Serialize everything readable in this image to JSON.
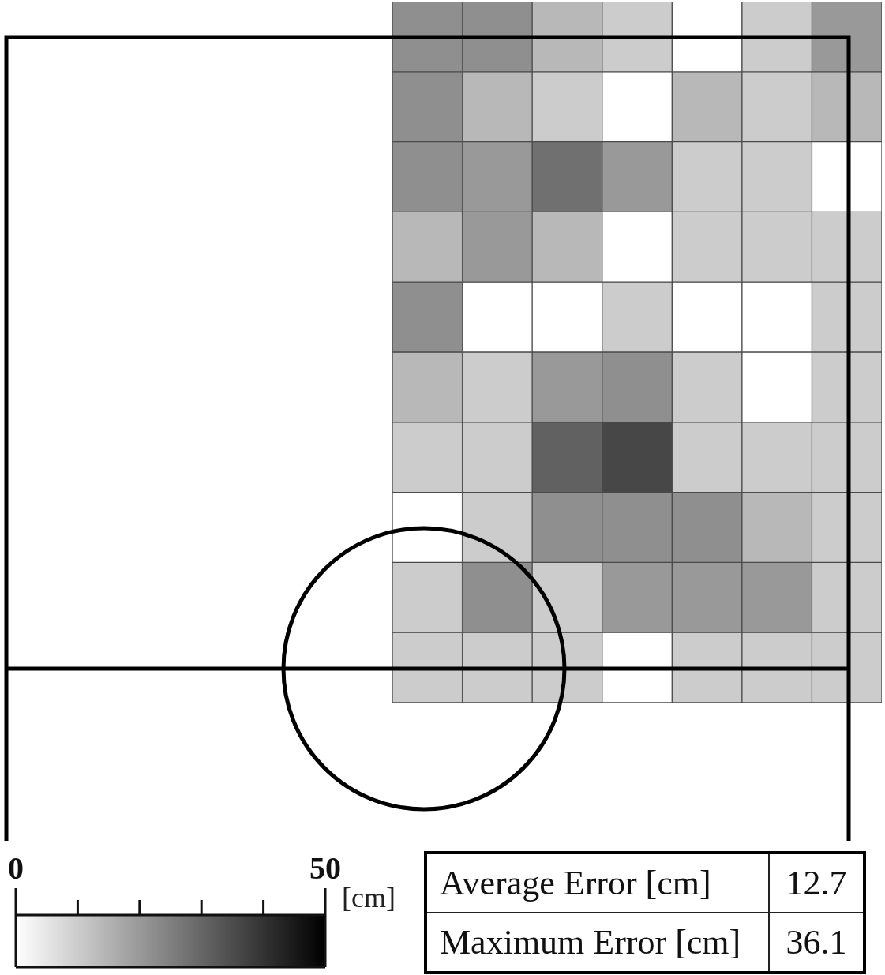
{
  "chart_data": {
    "type": "heatmap",
    "categories": [
      null,
      null,
      null,
      null,
      null,
      null,
      null
    ],
    "y_categories": [
      null,
      null,
      null,
      null,
      null,
      null,
      null,
      null,
      null,
      null
    ],
    "cells": [
      [
        22,
        22,
        14,
        10,
        0,
        10,
        20
      ],
      [
        22,
        14,
        10,
        0,
        14,
        10,
        14
      ],
      [
        22,
        20,
        28,
        20,
        10,
        10,
        0
      ],
      [
        14,
        20,
        14,
        0,
        10,
        10,
        10
      ],
      [
        22,
        0,
        0,
        10,
        0,
        0,
        10
      ],
      [
        14,
        10,
        20,
        22,
        10,
        0,
        10
      ],
      [
        10,
        10,
        31,
        36,
        10,
        10,
        10
      ],
      [
        0,
        10,
        22,
        22,
        22,
        14,
        10
      ],
      [
        10,
        22,
        10,
        20,
        20,
        20,
        10
      ],
      [
        10,
        10,
        10,
        0,
        10,
        10,
        10
      ]
    ],
    "clim": [
      0,
      50
    ],
    "cticks": [
      0,
      {
        "value": 10,
        "label": null
      },
      {
        "value": 20,
        "label": null
      },
      {
        "value": 30,
        "label": null
      },
      {
        "value": 40,
        "label": null
      },
      50
    ],
    "clabel": "[cm]",
    "annotations": [
      "Average Error [cm]",
      "12.7",
      "Maximum Error [cm]",
      "36.1"
    ],
    "tick_labels": false
  }
}
